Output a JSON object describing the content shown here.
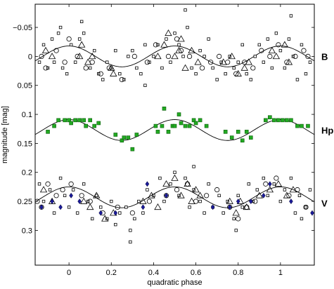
{
  "chart_data": {
    "type": "scatter",
    "title": "",
    "xlabel": "quadratic phase",
    "ylabel": "magnitude [mag]",
    "xlim": [
      -0.16,
      1.16
    ],
    "ylim": [
      0.36,
      -0.09
    ],
    "y_inverted": true,
    "grid": false,
    "x_ticks": [
      {
        "value": 0,
        "label": "0"
      },
      {
        "value": 0.2,
        "label": "0.2"
      },
      {
        "value": 0.4,
        "label": "0.4"
      },
      {
        "value": 0.6,
        "label": "0.6"
      },
      {
        "value": 0.8,
        "label": "0.8"
      },
      {
        "value": 1,
        "label": "1"
      }
    ],
    "y_ticks": [
      {
        "value": -0.05,
        "label": "−0.05"
      },
      {
        "value": 0,
        "label": "0"
      },
      {
        "value": 0.05,
        "label": "0.05"
      },
      {
        "value": 0.1,
        "label": "0.1"
      },
      {
        "value": 0.15,
        "label": "0.15"
      },
      {
        "value": 0.2,
        "label": "0.2"
      },
      {
        "value": 0.25,
        "label": "0.25"
      },
      {
        "value": 0.3,
        "label": "0.3"
      }
    ],
    "bands": [
      {
        "label": "B",
        "label_y": 0.0,
        "curve": {
          "offset": 0.0,
          "amplitude": 0.018,
          "phase_max": 0.25,
          "color": "#000000"
        },
        "series": [
          {
            "marker": "open-square",
            "color": "#000000",
            "x": [
              -0.14,
              -0.12,
              -0.1,
              -0.08,
              -0.07,
              -0.05,
              -0.03,
              -0.01,
              0.01,
              0.03,
              0.05,
              0.07,
              0.1,
              0.12,
              0.14,
              0.16,
              0.18,
              0.2,
              0.22,
              0.24,
              0.26,
              0.28,
              0.3,
              0.32,
              0.34,
              0.36,
              0.38,
              0.4,
              0.42,
              0.44,
              0.46,
              0.48,
              0.5,
              0.52,
              0.54,
              0.56,
              0.58,
              0.6,
              0.62,
              0.64,
              0.66,
              0.68,
              0.7,
              0.72,
              0.74,
              0.76,
              0.78,
              0.8,
              0.82,
              0.84,
              0.86,
              0.88,
              0.9,
              0.92,
              0.94,
              0.96,
              0.98,
              1.0,
              1.02,
              1.04,
              1.06,
              1.08,
              1.1,
              1.12,
              1.14,
              0.06,
              0.55,
              0.36,
              -0.04,
              1.05
            ],
            "y": [
              0.01,
              -0.02,
              0.02,
              -0.03,
              0.01,
              -0.04,
              0.02,
              0.03,
              -0.02,
              0.01,
              -0.03,
              -0.04,
              0.02,
              -0.01,
              0.03,
              0.04,
              0.01,
              0.02,
              -0.01,
              0.03,
              0.04,
              0.0,
              -0.01,
              0.02,
              0.03,
              -0.02,
              0.01,
              0.0,
              -0.02,
              0.02,
              -0.03,
              0.01,
              -0.04,
              -0.02,
              0.0,
              -0.05,
              0.02,
              0.03,
              -0.01,
              0.0,
              -0.03,
              0.02,
              0.04,
              0.01,
              0.03,
              0.0,
              0.02,
              0.01,
              -0.02,
              0.03,
              0.04,
              0.0,
              -0.02,
              0.01,
              -0.03,
              0.02,
              -0.04,
              -0.01,
              0.02,
              -0.03,
              0.0,
              0.04,
              -0.02,
              0.03,
              0.01,
              -0.06,
              -0.08,
              0.05,
              -0.05,
              -0.07
            ]
          },
          {
            "marker": "open-circle",
            "color": "#000000",
            "x": [
              -0.13,
              -0.11,
              -0.06,
              -0.02,
              0.0,
              0.04,
              0.08,
              0.11,
              0.15,
              0.19,
              0.25,
              0.31,
              0.37,
              0.41,
              0.47,
              0.51,
              0.53,
              0.57,
              0.63,
              0.67,
              0.71,
              0.75,
              0.79,
              0.83,
              0.87,
              0.91,
              0.95,
              0.99,
              1.03,
              1.07,
              1.11,
              1.13
            ],
            "y": [
              0.0,
              0.02,
              -0.01,
              0.01,
              -0.03,
              0.0,
              0.02,
              0.01,
              0.03,
              0.02,
              0.04,
              0.0,
              0.01,
              -0.02,
              0.0,
              -0.03,
              -0.01,
              0.0,
              0.02,
              0.01,
              0.0,
              0.01,
              0.03,
              0.01,
              0.02,
              -0.01,
              0.0,
              -0.02,
              0.01,
              0.0,
              -0.01,
              0.0
            ]
          },
          {
            "marker": "open-triangle",
            "color": "#000000",
            "x": [
              -0.11,
              -0.08,
              0.05,
              0.06,
              0.09,
              0.11,
              0.2,
              0.21,
              0.42,
              0.45,
              0.47,
              0.5,
              0.52,
              0.53,
              0.55,
              0.58,
              0.61,
              0.73,
              0.77,
              0.8,
              0.83,
              0.85,
              0.96,
              0.98,
              1.02,
              1.04
            ],
            "y": [
              -0.01,
              0.0,
              0.0,
              -0.02,
              0.01,
              0.0,
              0.02,
              0.03,
              0.0,
              -0.02,
              -0.04,
              0.0,
              -0.01,
              -0.03,
              0.02,
              -0.01,
              0.01,
              0.01,
              0.0,
              0.03,
              0.02,
              0.01,
              -0.01,
              0.0,
              -0.02,
              0.01
            ]
          }
        ]
      },
      {
        "label": "Hp",
        "label_y": 0.127,
        "curve": {
          "offset": 0.127,
          "amplitude": 0.018,
          "phase_max": 0.25,
          "color": "#000000"
        },
        "series": [
          {
            "marker": "filled-square",
            "color": "#22aa22",
            "x": [
              -0.1,
              -0.07,
              -0.05,
              -0.02,
              0.0,
              0.01,
              0.03,
              0.05,
              0.07,
              0.08,
              0.1,
              0.12,
              0.14,
              0.22,
              0.25,
              0.26,
              0.28,
              0.3,
              0.32,
              0.41,
              0.42,
              0.44,
              0.45,
              0.47,
              0.49,
              0.5,
              0.52,
              0.53,
              0.55,
              0.57,
              0.59,
              0.6,
              0.62,
              0.65,
              0.74,
              0.77,
              0.8,
              0.82,
              0.84,
              0.86,
              0.93,
              0.95,
              0.97,
              0.99,
              1.01,
              1.03,
              1.05,
              1.08,
              1.1,
              1.13
            ],
            "y": [
              0.13,
              0.12,
              0.11,
              0.11,
              0.11,
              0.115,
              0.11,
              0.11,
              0.11,
              0.12,
              0.11,
              0.12,
              0.115,
              0.135,
              0.145,
              0.14,
              0.14,
              0.16,
              0.135,
              0.12,
              0.13,
              0.12,
              0.09,
              0.13,
              0.12,
              0.12,
              0.1,
              0.115,
              0.12,
              0.12,
              0.11,
              0.115,
              0.11,
              0.12,
              0.13,
              0.14,
              0.13,
              0.145,
              0.13,
              0.14,
              0.11,
              0.105,
              0.11,
              0.11,
              0.11,
              0.11,
              0.11,
              0.12,
              0.12,
              0.12
            ]
          }
        ]
      },
      {
        "label": "V",
        "label_y": 0.253,
        "curve": {
          "offset": 0.243,
          "amplitude": 0.018,
          "phase_max": 0.25,
          "color": "#000000"
        },
        "series": [
          {
            "marker": "open-square",
            "color": "#000000",
            "x": [
              -0.14,
              -0.12,
              -0.09,
              -0.07,
              -0.04,
              -0.02,
              0.0,
              0.02,
              0.04,
              0.07,
              0.09,
              0.11,
              0.13,
              0.15,
              0.18,
              0.2,
              0.22,
              0.24,
              0.27,
              0.29,
              0.31,
              0.33,
              0.35,
              0.37,
              0.4,
              0.43,
              0.45,
              0.48,
              0.5,
              0.52,
              0.55,
              0.57,
              0.59,
              0.62,
              0.64,
              0.66,
              0.68,
              0.71,
              0.73,
              0.75,
              0.78,
              0.8,
              0.82,
              0.85,
              0.87,
              0.89,
              0.92,
              0.94,
              0.97,
              1.0,
              1.02,
              1.05,
              1.07,
              1.09,
              1.12,
              1.14,
              0.29,
              0.59,
              0.79,
              1.1
            ],
            "y": [
              0.22,
              0.25,
              0.23,
              0.27,
              0.21,
              0.24,
              0.26,
              0.23,
              0.27,
              0.22,
              0.25,
              0.28,
              0.24,
              0.26,
              0.28,
              0.25,
              0.29,
              0.27,
              0.26,
              0.3,
              0.28,
              0.25,
              0.27,
              0.23,
              0.24,
              0.21,
              0.25,
              0.22,
              0.2,
              0.24,
              0.21,
              0.26,
              0.23,
              0.25,
              0.27,
              0.22,
              0.26,
              0.24,
              0.27,
              0.25,
              0.28,
              0.24,
              0.26,
              0.22,
              0.25,
              0.23,
              0.21,
              0.24,
              0.22,
              0.25,
              0.23,
              0.21,
              0.27,
              0.24,
              0.26,
              0.23,
              0.32,
              0.19,
              0.3,
              0.28
            ]
          },
          {
            "marker": "open-circle",
            "color": "#000000",
            "x": [
              -0.15,
              -0.13,
              -0.1,
              -0.06,
              -0.03,
              0.01,
              0.06,
              0.1,
              0.16,
              0.23,
              0.3,
              0.38,
              0.46,
              0.51,
              0.56,
              0.6,
              0.65,
              0.7,
              0.76,
              0.8,
              0.84,
              0.88,
              0.93,
              0.98,
              1.04,
              1.08,
              1.12
            ],
            "y": [
              0.25,
              0.26,
              0.22,
              0.24,
              0.23,
              0.22,
              0.24,
              0.25,
              0.27,
              0.26,
              0.27,
              0.25,
              0.24,
              0.23,
              0.22,
              0.25,
              0.24,
              0.23,
              0.26,
              0.28,
              0.26,
              0.25,
              0.22,
              0.21,
              0.24,
              0.23,
              0.26
            ]
          },
          {
            "marker": "open-triangle",
            "color": "#000000",
            "x": [
              -0.12,
              -0.08,
              0.07,
              0.1,
              0.13,
              0.17,
              0.21,
              0.35,
              0.39,
              0.42,
              0.46,
              0.5,
              0.53,
              0.56,
              0.58,
              0.6,
              0.62,
              0.76,
              0.79,
              0.81,
              0.84,
              0.9,
              0.95,
              0.99,
              1.03,
              1.06
            ],
            "y": [
              0.23,
              0.25,
              0.25,
              0.26,
              0.24,
              0.28,
              0.27,
              0.25,
              0.24,
              0.26,
              0.22,
              0.21,
              0.24,
              0.22,
              0.25,
              0.23,
              0.24,
              0.25,
              0.27,
              0.25,
              0.26,
              0.24,
              0.23,
              0.22,
              0.24,
              0.23
            ]
          },
          {
            "marker": "filled-diamond",
            "color": "#1a1a99",
            "x": [
              -0.13,
              -0.08,
              -0.04,
              0.01,
              0.05,
              0.15,
              0.22,
              0.35,
              0.37,
              0.46,
              0.68,
              0.76,
              0.8,
              0.86,
              0.92,
              0.95,
              1.05,
              1.15
            ],
            "y": [
              0.26,
              0.25,
              0.26,
              0.24,
              0.25,
              0.27,
              0.27,
              0.26,
              0.22,
              0.24,
              0.26,
              0.26,
              0.25,
              0.25,
              0.24,
              0.22,
              0.25,
              0.27
            ]
          }
        ]
      }
    ]
  }
}
